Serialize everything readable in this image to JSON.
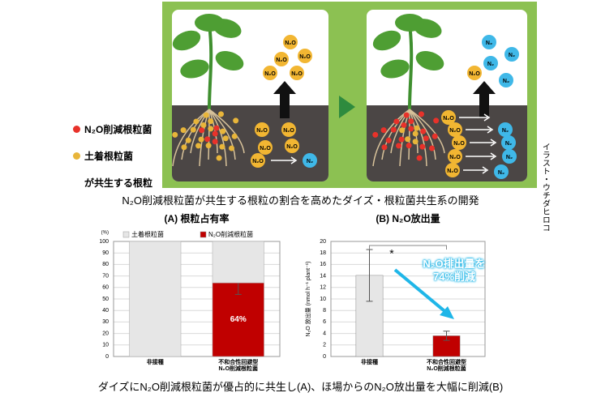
{
  "illustration": {
    "legend": [
      "N₂O削減根粒菌",
      "土着根粒菌",
      "が共生する根粒"
    ],
    "legend_colors": [
      "#e8322a",
      "#e8b53a"
    ],
    "molecule_n2o": "N₂O",
    "molecule_n2": "N₂",
    "credit": "イラスト・ウチダヒロコ",
    "caption": "N₂O削減根粒菌が共生する根粒の割合を高めたダイズ・根粒菌共生系の開発"
  },
  "chart_data": [
    {
      "type": "bar",
      "stacked": true,
      "title": "(A) 根粒占有率",
      "y_unit": "(%)",
      "categories": [
        "非接種",
        "不和合性回避型\nN₂O削減根粒菌"
      ],
      "series": [
        {
          "name": "土着根粒菌",
          "color": "#e6e6e6",
          "values": [
            100,
            36
          ]
        },
        {
          "name": "N₂O削減根粒菌",
          "color": "#c00000",
          "values": [
            0,
            64
          ],
          "errors": [
            null,
            10
          ],
          "value_labels": [
            null,
            "64%"
          ]
        }
      ],
      "ylim": [
        0,
        100
      ],
      "yticks": [
        0,
        10,
        20,
        30,
        40,
        50,
        60,
        70,
        80,
        90,
        100
      ]
    },
    {
      "type": "bar",
      "title": "(B) N₂O放出量",
      "ylabel": "N₂O 放出量 (nmol h⁻¹ plant⁻¹)",
      "categories": [
        "非接種",
        "不和合性回避型\nN₂O削減根粒菌"
      ],
      "values": [
        14.1,
        3.6
      ],
      "colors": [
        "#e6e6e6",
        "#c00000"
      ],
      "errors": [
        4.5,
        0.8
      ],
      "ylim": [
        0,
        20
      ],
      "yticks": [
        0,
        2,
        4,
        6,
        8,
        10,
        12,
        14,
        16,
        18,
        20
      ],
      "significance": "*",
      "annotation": "N₂O排出量を\n74%削減",
      "annotation_color": "#1fb6e8"
    }
  ],
  "footer": "ダイズにN₂O削減根粒菌が優占的に共生し(A)、ほ場からのN₂O放出量を大幅に削減(B)"
}
